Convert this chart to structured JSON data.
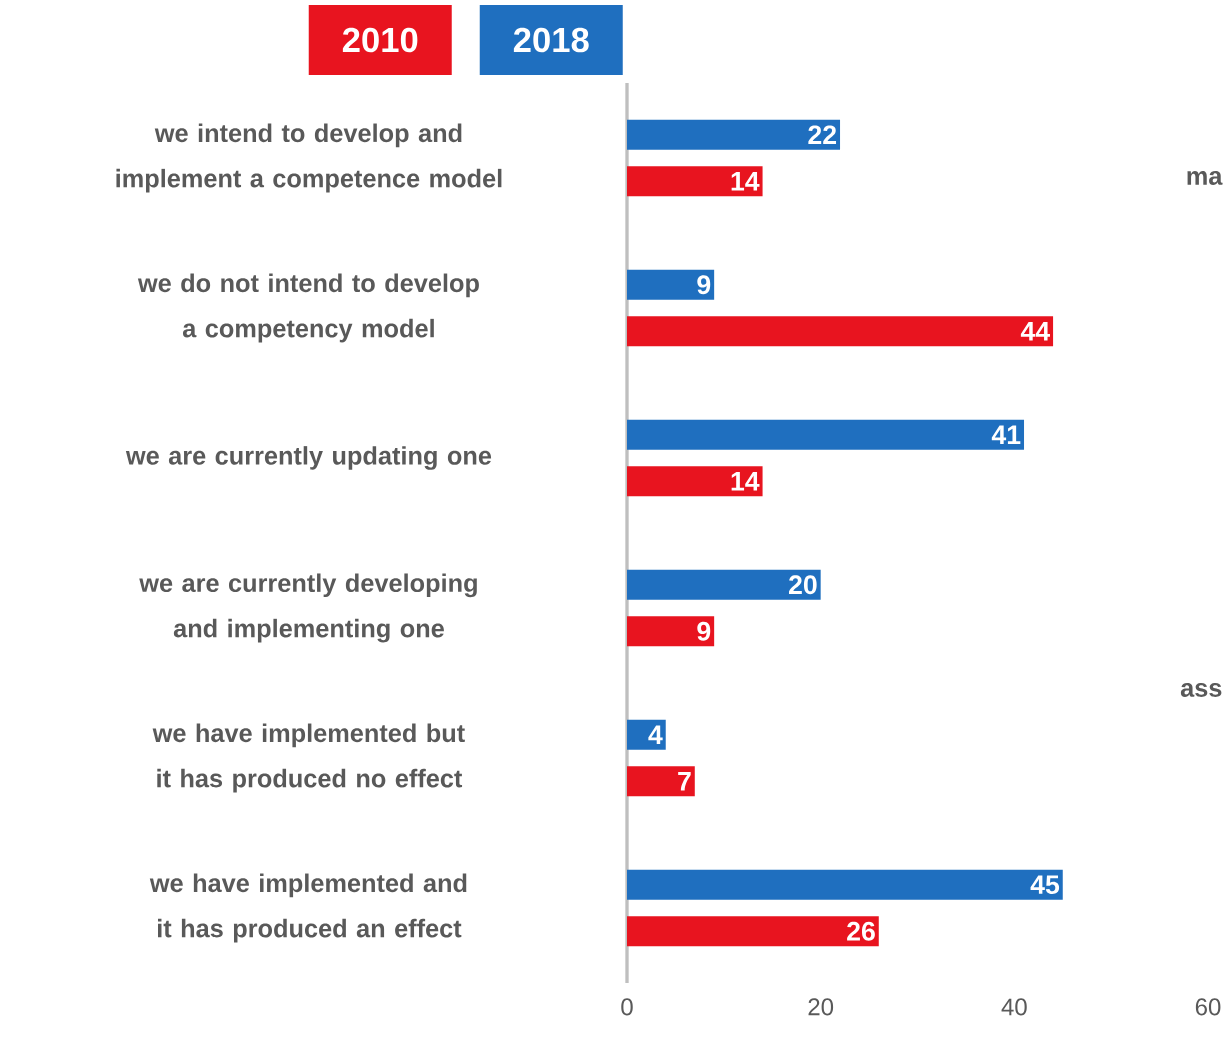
{
  "chart_data": {
    "type": "bar",
    "orientation": "horizontal",
    "categories": [
      "we intend to develop and implement a competence model",
      "we do not intend to develop a competency model",
      "we are currently updating one",
      "we are currently developing and implementing one",
      "we have implemented but it has produced no effect",
      "we have implemented and it has produced an effect"
    ],
    "series": [
      {
        "name": "2010",
        "color": "#e8141f",
        "values": [
          14,
          44,
          14,
          9,
          7,
          26
        ]
      },
      {
        "name": "2018",
        "color": "#1f6fbf",
        "values": [
          22,
          9,
          41,
          20,
          4,
          45
        ]
      }
    ],
    "xlim": [
      0,
      60
    ],
    "xticks": [
      0,
      20,
      40,
      60
    ],
    "data_labels": true,
    "legend": "top left",
    "annotations": [
      "ma",
      "ass"
    ]
  }
}
